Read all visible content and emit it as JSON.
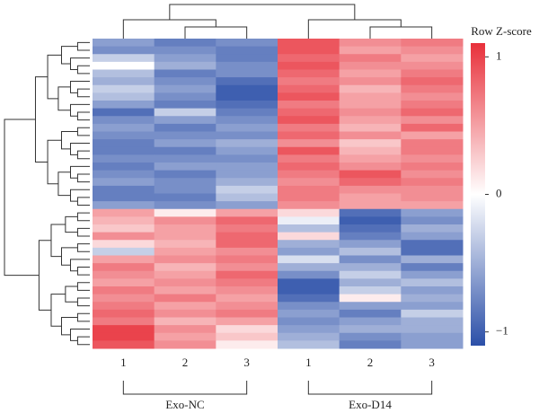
{
  "chart_data": {
    "type": "heatmap",
    "columns": [
      "1",
      "2",
      "3",
      "1",
      "2",
      "3"
    ],
    "groups": [
      "Exo-NC",
      "Exo-D14"
    ],
    "colorbar_title": "Row Z-score",
    "colors": [
      "#2b4fa8",
      "#ffffff",
      "#e8303a"
    ],
    "zlim": [
      -1.1,
      1.1
    ],
    "zticks": [
      {
        "value": -1,
        "label": "−1"
      },
      0,
      1
    ],
    "values": [
      [
        -0.6,
        -0.8,
        -0.7,
        0.9,
        0.6,
        0.7
      ],
      [
        -0.7,
        -0.7,
        -0.8,
        0.9,
        0.5,
        0.6
      ],
      [
        -0.3,
        -0.6,
        -0.8,
        0.8,
        0.7,
        0.5
      ],
      [
        0.0,
        -0.5,
        -0.7,
        0.9,
        0.6,
        0.6
      ],
      [
        -0.4,
        -0.8,
        -0.7,
        0.8,
        0.5,
        0.7
      ],
      [
        -0.5,
        -0.7,
        -0.9,
        0.7,
        0.6,
        0.8
      ],
      [
        -0.3,
        -0.6,
        -1.0,
        0.8,
        0.4,
        0.7
      ],
      [
        -0.4,
        -0.7,
        -1.0,
        0.9,
        0.5,
        0.6
      ],
      [
        -0.6,
        -0.8,
        -0.9,
        0.7,
        0.5,
        0.7
      ],
      [
        -0.9,
        -0.3,
        -0.8,
        0.8,
        0.6,
        0.8
      ],
      [
        -0.7,
        -0.6,
        -0.7,
        0.9,
        0.5,
        0.6
      ],
      [
        -0.6,
        -0.8,
        -0.6,
        0.7,
        0.4,
        0.8
      ],
      [
        -0.7,
        -0.7,
        -0.7,
        0.8,
        0.6,
        0.5
      ],
      [
        -0.8,
        -0.6,
        -0.5,
        0.6,
        0.3,
        0.7
      ],
      [
        -0.8,
        -0.8,
        -0.6,
        0.9,
        0.4,
        0.7
      ],
      [
        -0.7,
        -0.7,
        -0.7,
        0.7,
        0.5,
        0.6
      ],
      [
        -0.8,
        -0.6,
        -0.6,
        0.8,
        0.6,
        0.7
      ],
      [
        -0.7,
        -0.8,
        -0.6,
        0.7,
        0.9,
        0.6
      ],
      [
        -0.6,
        -0.7,
        -0.5,
        0.6,
        0.8,
        0.7
      ],
      [
        -0.8,
        -0.7,
        -0.3,
        0.7,
        0.6,
        0.6
      ],
      [
        -0.8,
        -0.8,
        -0.4,
        0.7,
        0.5,
        0.6
      ],
      [
        -0.6,
        -0.7,
        -0.6,
        0.6,
        0.5,
        0.5
      ],
      [
        0.5,
        0.1,
        0.5,
        0.2,
        -0.9,
        -0.6
      ],
      [
        0.4,
        0.6,
        0.8,
        -0.1,
        -1.0,
        -0.7
      ],
      [
        0.3,
        0.5,
        0.7,
        -0.4,
        -0.9,
        -0.5
      ],
      [
        0.6,
        0.5,
        0.8,
        0.2,
        -0.8,
        -0.6
      ],
      [
        0.2,
        0.4,
        0.8,
        -0.5,
        -0.6,
        -0.9
      ],
      [
        -0.3,
        0.5,
        0.6,
        -0.6,
        -0.4,
        -0.9
      ],
      [
        0.5,
        0.6,
        0.7,
        -0.2,
        -0.7,
        -0.5
      ],
      [
        0.7,
        0.4,
        0.6,
        -0.5,
        -0.5,
        -0.8
      ],
      [
        0.6,
        0.5,
        0.8,
        -0.7,
        -0.3,
        -0.6
      ],
      [
        0.5,
        0.6,
        0.7,
        -1.0,
        -0.5,
        -0.4
      ],
      [
        0.7,
        0.5,
        0.6,
        -1.0,
        -0.3,
        -0.6
      ],
      [
        0.6,
        0.7,
        0.5,
        -0.9,
        0.1,
        -0.5
      ],
      [
        0.7,
        0.5,
        0.6,
        -0.7,
        -0.6,
        -0.6
      ],
      [
        0.8,
        0.6,
        0.7,
        -0.6,
        -0.8,
        -0.3
      ],
      [
        0.7,
        0.4,
        0.5,
        -0.7,
        -0.6,
        -0.5
      ],
      [
        1.0,
        0.6,
        0.2,
        -0.6,
        -0.5,
        -0.5
      ],
      [
        1.0,
        0.5,
        0.3,
        -0.5,
        -0.7,
        -0.6
      ],
      [
        0.9,
        0.6,
        0.1,
        -0.4,
        -0.8,
        -0.6
      ]
    ]
  }
}
